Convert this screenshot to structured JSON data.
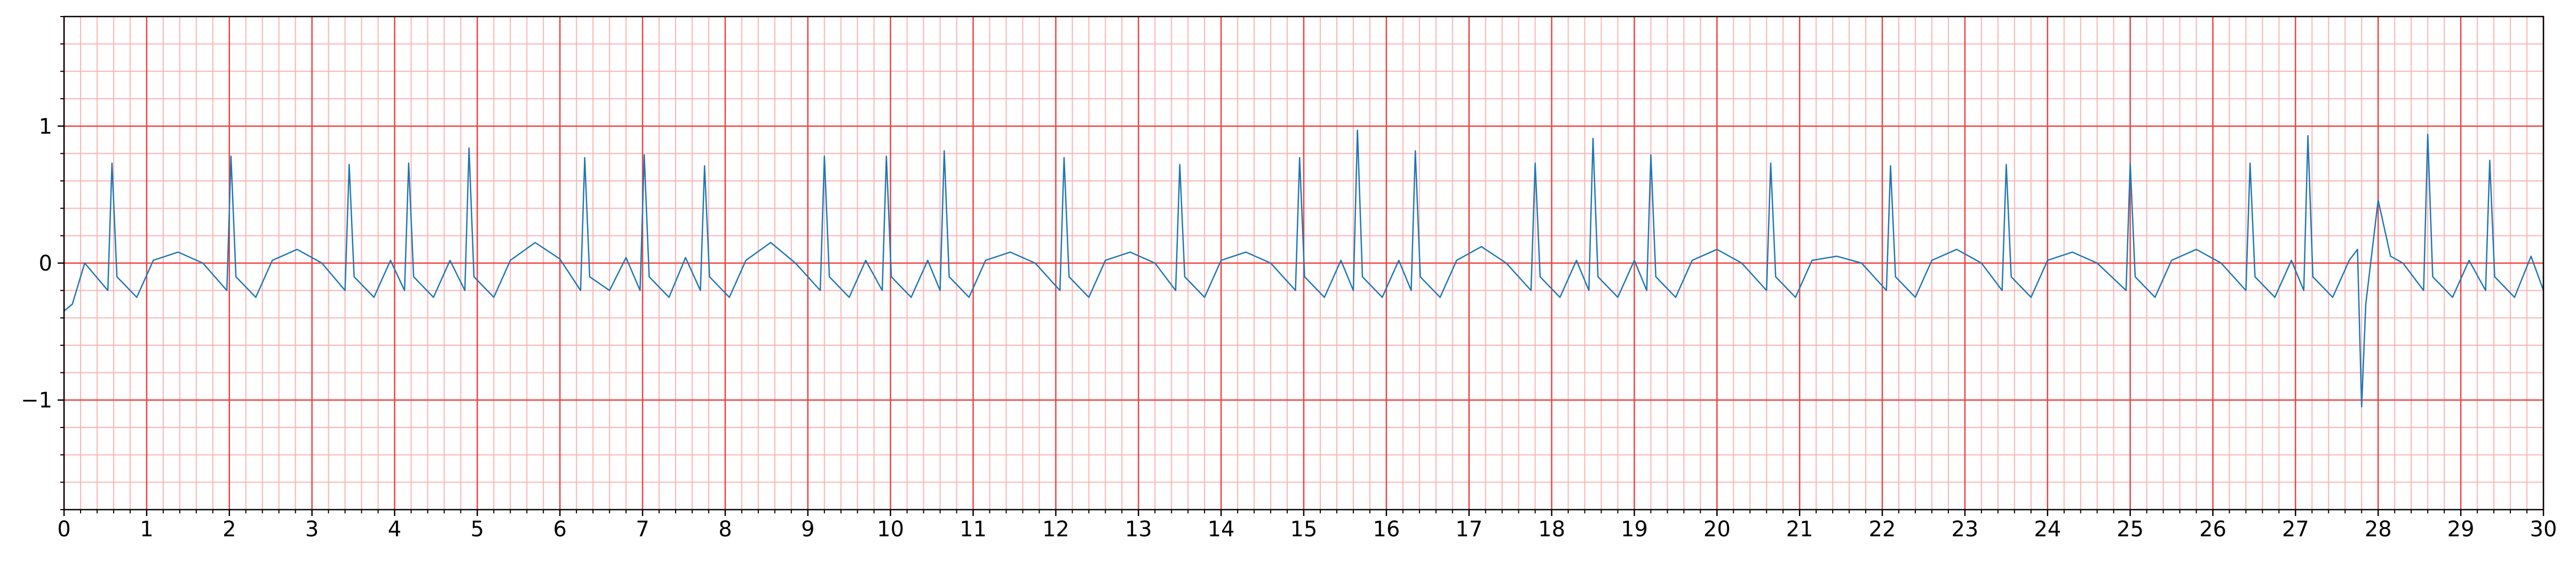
{
  "chart_data": {
    "type": "line",
    "x": [
      0,
      0.1,
      0.25,
      0.53,
      0.58,
      0.64,
      0.88,
      1.08,
      1.38,
      1.68,
      1.97,
      2.02,
      2.08,
      2.32,
      2.52,
      2.82,
      3.12,
      3.4,
      3.45,
      3.51,
      3.75,
      3.95,
      4.12,
      4.17,
      4.23,
      4.47,
      4.67,
      4.85,
      4.9,
      4.96,
      5.2,
      5.4,
      5.7,
      6.0,
      6.25,
      6.3,
      6.36,
      6.6,
      6.8,
      6.97,
      7.02,
      7.08,
      7.32,
      7.52,
      7.7,
      7.75,
      7.81,
      8.05,
      8.25,
      8.55,
      8.85,
      9.15,
      9.2,
      9.26,
      9.5,
      9.7,
      9.9,
      9.95,
      10.01,
      10.25,
      10.45,
      10.6,
      10.65,
      10.71,
      10.95,
      11.15,
      11.45,
      11.75,
      12.05,
      12.1,
      12.16,
      12.4,
      12.6,
      12.9,
      13.2,
      13.45,
      13.5,
      13.56,
      13.8,
      14.0,
      14.3,
      14.6,
      14.9,
      14.95,
      15.01,
      15.25,
      15.45,
      15.6,
      15.65,
      15.71,
      15.95,
      16.15,
      16.3,
      16.35,
      16.41,
      16.65,
      16.85,
      17.15,
      17.45,
      17.75,
      17.8,
      17.86,
      18.1,
      18.3,
      18.45,
      18.5,
      18.56,
      18.8,
      19.0,
      19.15,
      19.2,
      19.26,
      19.5,
      19.7,
      20.0,
      20.3,
      20.6,
      20.65,
      20.71,
      20.95,
      21.15,
      21.45,
      21.75,
      22.05,
      22.1,
      22.16,
      22.4,
      22.6,
      22.9,
      23.2,
      23.45,
      23.5,
      23.56,
      23.8,
      24.0,
      24.3,
      24.6,
      24.95,
      25.0,
      25.06,
      25.3,
      25.5,
      25.8,
      26.1,
      26.4,
      26.45,
      26.51,
      26.75,
      26.95,
      27.1,
      27.15,
      27.21,
      27.45,
      27.65,
      27.75,
      27.8,
      27.85,
      28.0,
      28.15,
      28.3,
      28.55,
      28.6,
      28.66,
      28.9,
      29.1,
      29.3,
      29.35,
      29.41,
      29.65,
      29.85,
      30
    ],
    "values": [
      -0.35,
      -0.3,
      0.0,
      -0.2,
      0.73,
      -0.1,
      -0.25,
      0.02,
      0.08,
      0.0,
      -0.2,
      0.78,
      -0.1,
      -0.25,
      0.02,
      0.1,
      0.0,
      -0.2,
      0.72,
      -0.1,
      -0.25,
      0.02,
      -0.2,
      0.73,
      -0.1,
      -0.25,
      0.02,
      -0.2,
      0.84,
      -0.1,
      -0.25,
      0.02,
      0.15,
      0.03,
      -0.2,
      0.77,
      -0.1,
      -0.2,
      0.04,
      -0.2,
      0.79,
      -0.1,
      -0.25,
      0.04,
      -0.2,
      0.71,
      -0.1,
      -0.25,
      0.02,
      0.15,
      0.0,
      -0.2,
      0.78,
      -0.1,
      -0.25,
      0.02,
      -0.2,
      0.78,
      -0.1,
      -0.25,
      0.02,
      -0.2,
      0.82,
      -0.1,
      -0.25,
      0.02,
      0.08,
      0.0,
      -0.2,
      0.77,
      -0.1,
      -0.25,
      0.02,
      0.08,
      0.0,
      -0.2,
      0.72,
      -0.1,
      -0.25,
      0.02,
      0.08,
      0.0,
      -0.2,
      0.77,
      -0.1,
      -0.25,
      0.02,
      -0.2,
      0.97,
      -0.1,
      -0.25,
      0.02,
      -0.2,
      0.82,
      -0.1,
      -0.25,
      0.02,
      0.12,
      0.0,
      -0.2,
      0.73,
      -0.1,
      -0.25,
      0.02,
      -0.2,
      0.91,
      -0.1,
      -0.25,
      0.02,
      -0.2,
      0.79,
      -0.1,
      -0.25,
      0.02,
      0.1,
      0.0,
      -0.2,
      0.73,
      -0.1,
      -0.25,
      0.02,
      0.05,
      0.0,
      -0.2,
      0.71,
      -0.1,
      -0.25,
      0.02,
      0.1,
      0.0,
      -0.2,
      0.72,
      -0.1,
      -0.25,
      0.02,
      0.08,
      0.0,
      -0.2,
      0.73,
      -0.1,
      -0.25,
      0.02,
      0.1,
      0.0,
      -0.2,
      0.73,
      -0.1,
      -0.25,
      0.02,
      -0.2,
      0.93,
      -0.1,
      -0.25,
      0.02,
      0.1,
      -1.05,
      -0.3,
      0.46,
      0.05,
      0.0,
      -0.2,
      0.94,
      -0.1,
      -0.25,
      0.02,
      -0.2,
      0.75,
      -0.1,
      -0.25,
      0.05,
      -0.2
    ],
    "color": "#1f77b4",
    "xlim": [
      0,
      30
    ],
    "xticks": [
      0,
      1,
      2,
      3,
      4,
      5,
      6,
      7,
      8,
      9,
      10,
      11,
      12,
      13,
      14,
      15,
      16,
      17,
      18,
      19,
      20,
      21,
      22,
      23,
      24,
      25,
      26,
      27,
      28,
      29,
      30
    ],
    "ylim": [
      -1.8,
      1.8
    ],
    "yticks": [
      {
        "value": -1,
        "label": "−1"
      },
      0,
      1
    ],
    "grid": true,
    "grid_color": "#f04040",
    "minor_grid_color": "#fbb4b4",
    "minor_grid_divisions": 5
  }
}
